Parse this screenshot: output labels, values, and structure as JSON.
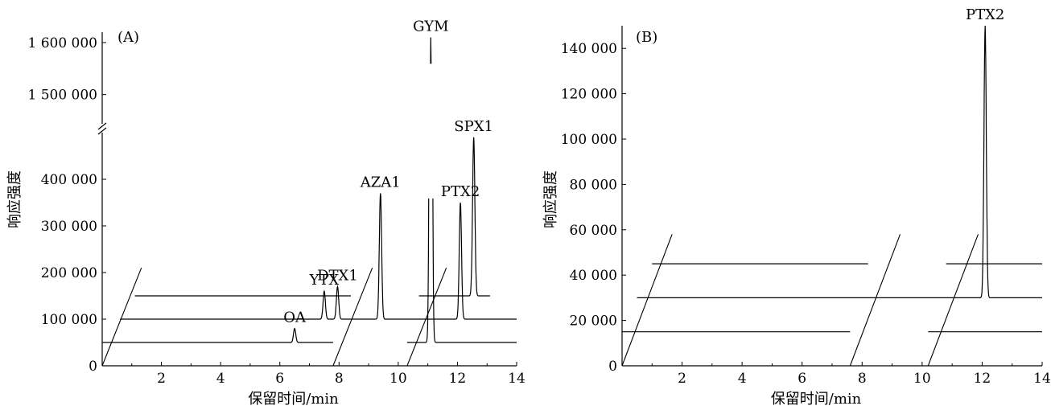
{
  "chart_data": [
    {
      "type": "line",
      "panel_label": "(A)",
      "xlabel": "保留时间/min",
      "ylabel": "响应强度",
      "xlim": [
        0,
        14
      ],
      "x_ticks": [
        "2",
        "4",
        "6",
        "8",
        "10",
        "12",
        "14"
      ],
      "ylim_lower": [
        0,
        500000
      ],
      "ylim_upper": [
        1450000,
        1620000
      ],
      "y_axis_break": true,
      "y_ticks": [
        "0",
        "100 000",
        "200 000",
        "300 000",
        "400 000",
        "1 500 000",
        "1 600 000"
      ],
      "legend": "none",
      "series": [
        {
          "baseline": 50000,
          "x_range": [
            0,
            14
          ],
          "break": [
            7.8,
            10.3
          ],
          "peaks": [
            {
              "x": 6.5,
              "height": 80000,
              "label": "OA"
            },
            {
              "x": 11.1,
              "height": 1610000,
              "label": "GYM"
            }
          ]
        },
        {
          "baseline": 100000,
          "x_range": [
            0.6,
            14
          ],
          "peaks": [
            {
              "x": 7.5,
              "height": 160000,
              "label": "YTX"
            },
            {
              "x": 7.95,
              "height": 170000,
              "label": "DTX1"
            },
            {
              "x": 9.4,
              "height": 370000,
              "label": "AZA1"
            },
            {
              "x": 12.1,
              "height": 350000,
              "label": "PTX2"
            }
          ]
        },
        {
          "baseline": 150000,
          "x_range": [
            1.1,
            13.1
          ],
          "break": [
            8.4,
            10.7
          ],
          "peaks": [
            {
              "x": 12.55,
              "height": 490000,
              "label": "SPX1"
            }
          ]
        }
      ]
    },
    {
      "type": "line",
      "panel_label": "(B)",
      "xlabel": "保留时间/min",
      "ylabel": "响应强度",
      "xlim": [
        0,
        14
      ],
      "x_ticks": [
        "2",
        "4",
        "6",
        "8",
        "10",
        "12",
        "14"
      ],
      "ylim": [
        0,
        150000
      ],
      "y_ticks": [
        "0",
        "20 000",
        "40 000",
        "60 000",
        "80 000",
        "100 000",
        "120 000",
        "140 000"
      ],
      "legend": "none",
      "series": [
        {
          "baseline": 15000,
          "x_range": [
            0,
            14
          ],
          "break": [
            7.6,
            10.2
          ],
          "peaks": []
        },
        {
          "baseline": 30000,
          "x_range": [
            0.5,
            14
          ],
          "peaks": [
            {
              "x": 12.1,
              "height": 150000,
              "label": "PTX2"
            }
          ]
        },
        {
          "baseline": 45000,
          "x_range": [
            1.0,
            14
          ],
          "break": [
            8.2,
            10.8
          ],
          "peaks": []
        }
      ]
    }
  ]
}
